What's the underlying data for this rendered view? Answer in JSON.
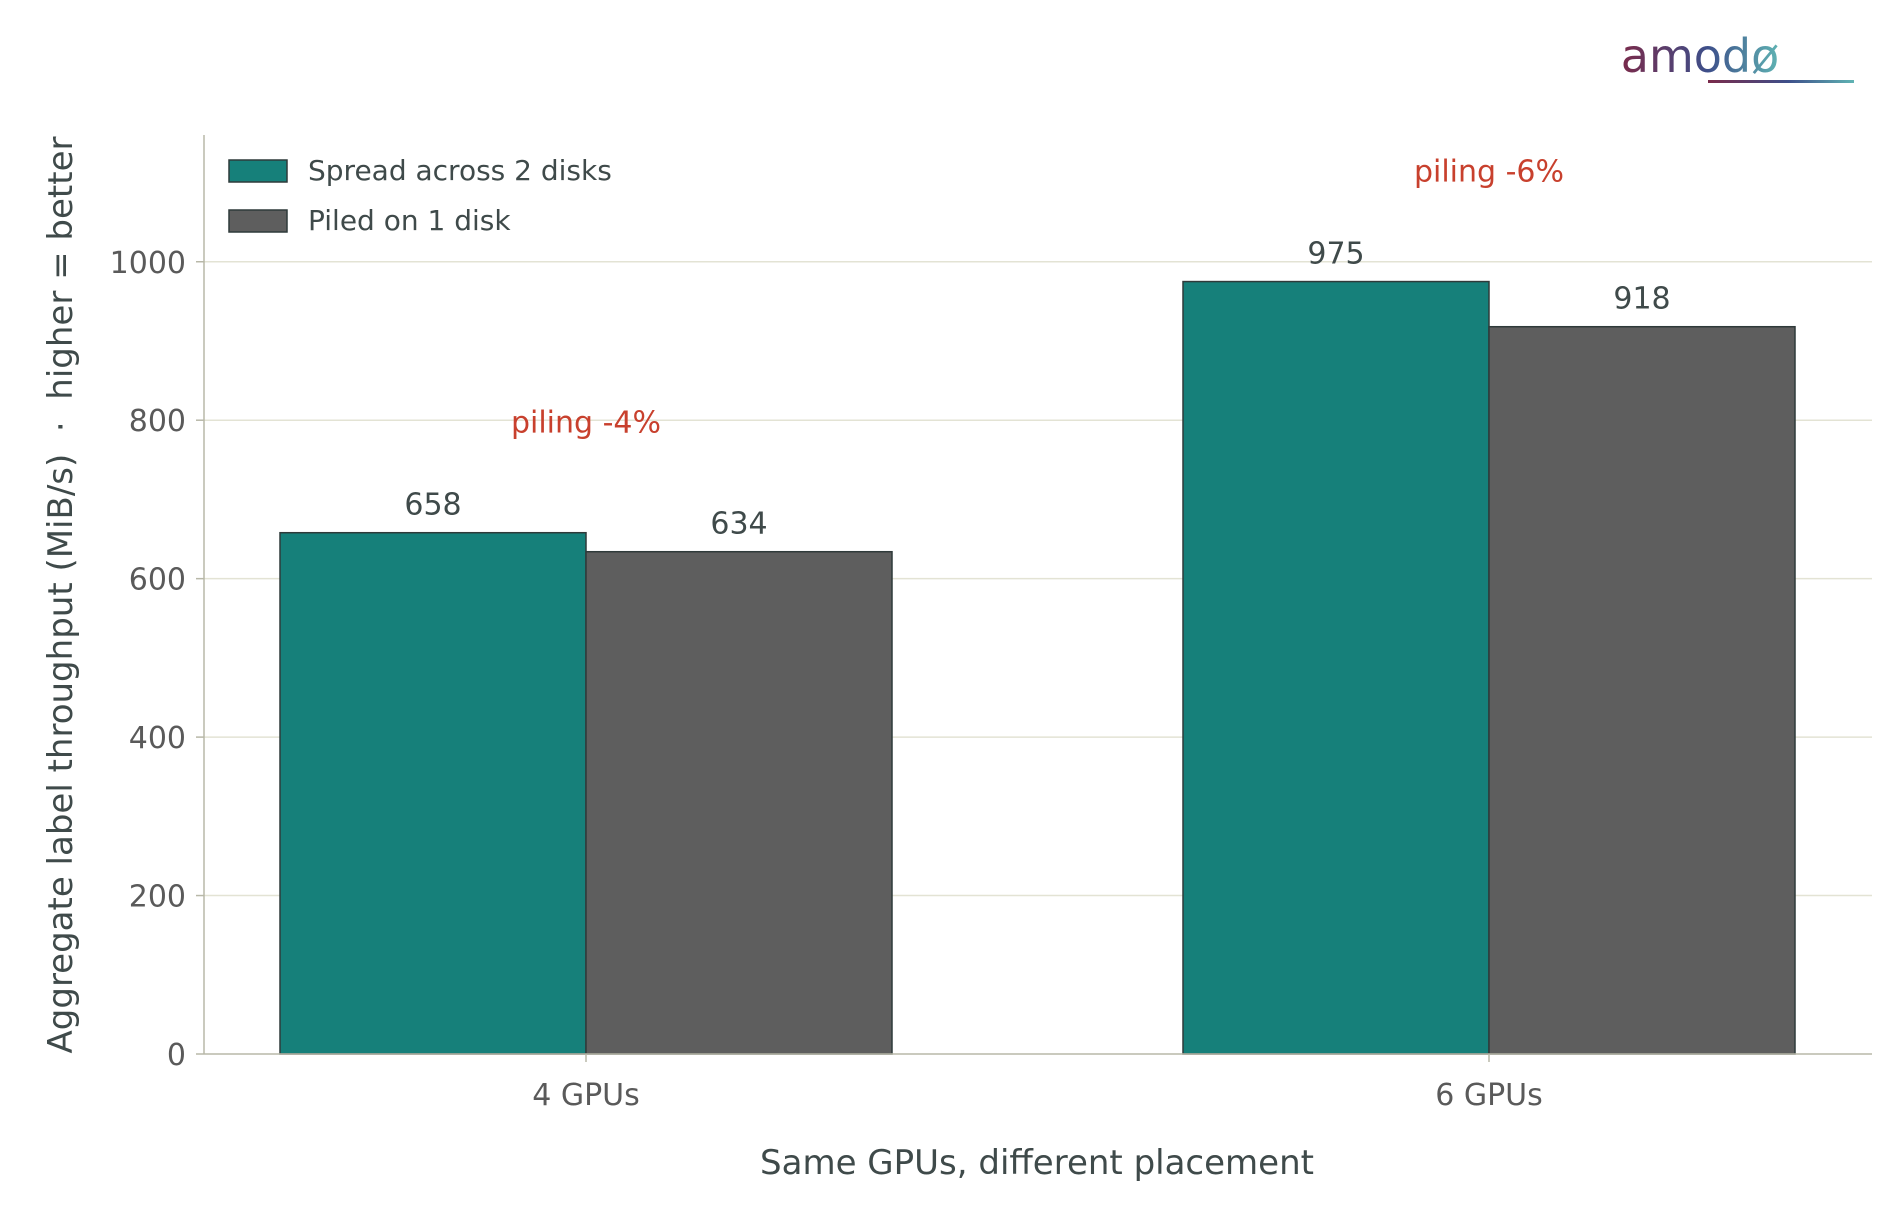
{
  "brand": {
    "logo_text": "amodø",
    "gradient_colors": [
      "#7a2a4a",
      "#3d4f8a",
      "#5fb3b3"
    ]
  },
  "chart_data": {
    "type": "bar",
    "xlabel": "Same GPUs, different placement",
    "ylabel": "Aggregate label throughput (MiB/s)  ·  higher = better",
    "categories": [
      "4 GPUs",
      "6 GPUs"
    ],
    "series": [
      {
        "name": "Spread across 2 disks",
        "values": [
          658,
          975
        ],
        "color": "#16807a"
      },
      {
        "name": "Piled on 1 disk",
        "values": [
          634,
          918
        ],
        "color": "#5e5e5e"
      }
    ],
    "data_labels": [
      [
        "658",
        "975"
      ],
      [
        "634",
        "918"
      ]
    ],
    "annotations": [
      {
        "category": "4 GPUs",
        "text": "piling -4%",
        "color": "#c8402d"
      },
      {
        "category": "6 GPUs",
        "text": "piling -6%",
        "color": "#c8402d"
      }
    ],
    "yticks": [
      0,
      200,
      400,
      600,
      800,
      1000
    ],
    "ylim": [
      0,
      1160
    ],
    "grid": true,
    "legend_position": "top-left"
  }
}
